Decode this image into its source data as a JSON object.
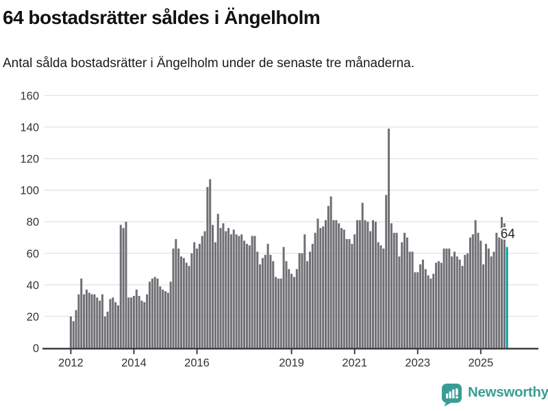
{
  "title": "64 bostadsrätter såldes i Ängelholm",
  "subtitle": "Antal sålda bostadsrätter i Ängelholm under de senaste tre månaderna.",
  "branding": {
    "name": "Newsworthy"
  },
  "colors": {
    "bar": "#6E6E73",
    "highlight": "#00A0A0",
    "grid": "#E3E3E3",
    "axis": "#3D3D3D",
    "tick_label": "#333333",
    "annotation": "#222222",
    "brand": "#3A9D95"
  },
  "chart_data": {
    "type": "bar",
    "title": "64 bostadsrätter såldes i Ängelholm",
    "subtitle": "Antal sålda bostadsrätter i Ängelholm under de senaste tre månaderna.",
    "xlabel": "",
    "ylabel": "",
    "x_start": "2012-01",
    "x_end": "2025-11",
    "frequency": "monthly",
    "ylim": [
      0,
      160
    ],
    "yticks": [
      0,
      20,
      40,
      60,
      80,
      100,
      120,
      140,
      160
    ],
    "xticks": [
      {
        "label": "2012",
        "month_index": 0
      },
      {
        "label": "2014",
        "month_index": 24
      },
      {
        "label": "2016",
        "month_index": 48
      },
      {
        "label": "2019",
        "month_index": 84
      },
      {
        "label": "2021",
        "month_index": 108
      },
      {
        "label": "2023",
        "month_index": 132
      },
      {
        "label": "2025",
        "month_index": 156
      }
    ],
    "grid": true,
    "legend": false,
    "highlight_index": 166,
    "highlight_value": 64,
    "annotation_label": "64",
    "values": [
      20,
      17,
      24,
      34,
      44,
      34,
      37,
      35,
      34,
      34,
      32,
      30,
      34,
      20,
      23,
      31,
      32,
      29,
      27,
      78,
      76,
      80,
      32,
      32,
      33,
      37,
      33,
      30,
      29,
      34,
      42,
      44,
      45,
      44,
      39,
      37,
      36,
      35,
      42,
      63,
      69,
      63,
      58,
      57,
      54,
      52,
      60,
      67,
      63,
      66,
      71,
      74,
      102,
      107,
      78,
      67,
      85,
      76,
      79,
      74,
      76,
      72,
      75,
      72,
      71,
      72,
      68,
      66,
      65,
      71,
      71,
      61,
      53,
      57,
      59,
      66,
      59,
      55,
      45,
      44,
      44,
      64,
      55,
      50,
      47,
      45,
      50,
      60,
      60,
      72,
      55,
      61,
      66,
      73,
      82,
      76,
      77,
      81,
      90,
      96,
      81,
      81,
      79,
      76,
      75,
      69,
      69,
      66,
      72,
      81,
      81,
      92,
      81,
      80,
      74,
      81,
      80,
      67,
      65,
      63,
      97,
      139,
      79,
      73,
      73,
      58,
      67,
      73,
      70,
      61,
      61,
      48,
      48,
      53,
      56,
      50,
      46,
      44,
      47,
      54,
      55,
      54,
      63,
      63,
      63,
      58,
      61,
      58,
      56,
      52,
      59,
      60,
      70,
      72,
      81,
      73,
      68,
      53,
      66,
      63,
      58,
      61,
      73,
      70,
      83,
      79,
      64
    ]
  }
}
